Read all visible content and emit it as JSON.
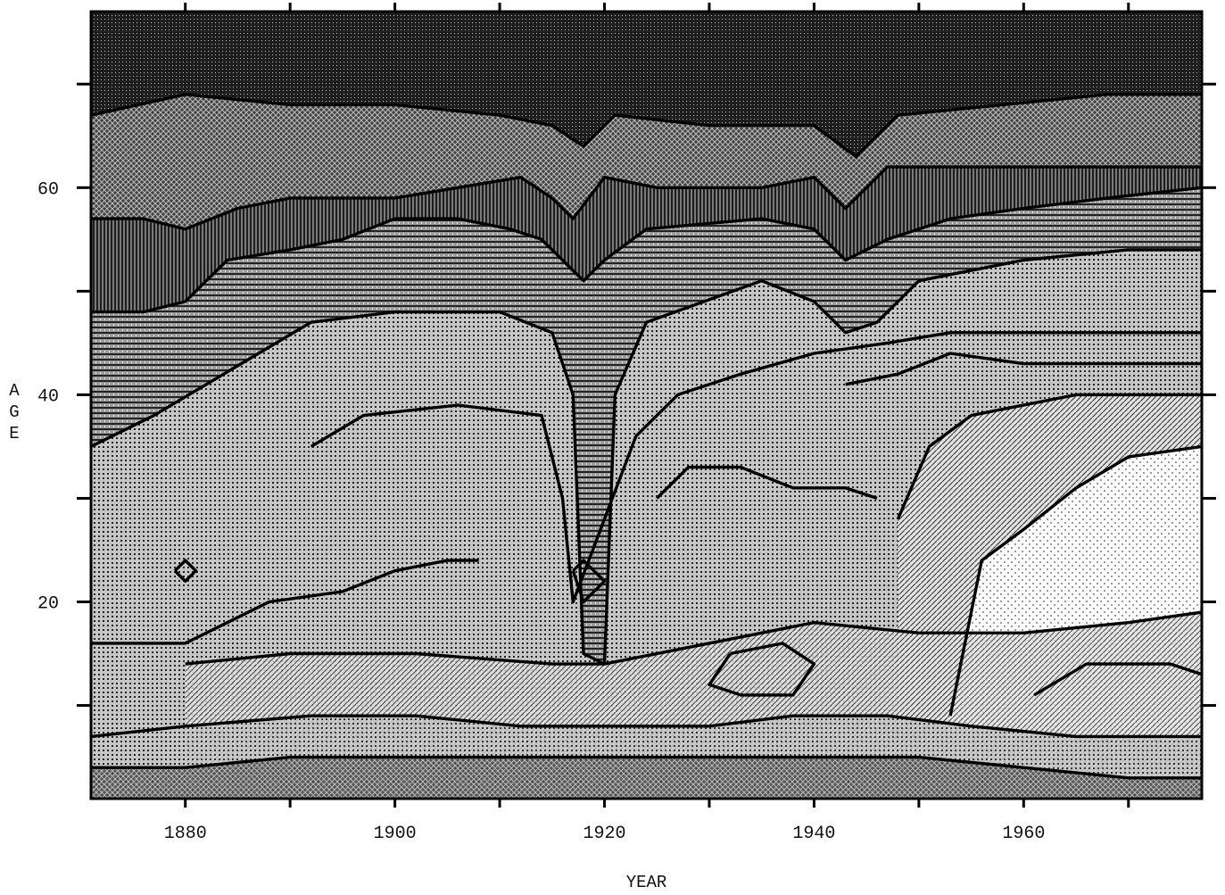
{
  "chart_data": {
    "type": "heatmap",
    "title": "",
    "xlabel": "YEAR",
    "ylabel": "AGE",
    "xlim": [
      1871,
      1977
    ],
    "ylim": [
      1,
      77
    ],
    "x_ticks": [
      1880,
      1890,
      1900,
      1910,
      1920,
      1930,
      1940,
      1950,
      1960,
      1970
    ],
    "x_tick_labels": [
      "1880",
      "",
      "1900",
      "",
      "1920",
      "",
      "1940",
      "",
      "1960",
      ""
    ],
    "y_ticks": [
      10,
      20,
      30,
      40,
      50,
      60,
      70
    ],
    "y_tick_labels": [
      "",
      "20",
      "",
      "40",
      "",
      "60",
      ""
    ],
    "grid": false,
    "legend": "none",
    "colors": {
      "contour_line": "#000000",
      "level_fills": [
        "#f2f2f2",
        "#d6d6d6",
        "#b5b5b5",
        "#8f8f8f",
        "#6b6b6b",
        "#4a4a4a",
        "#2e2e2e"
      ]
    },
    "contours": [
      {
        "level": 1,
        "points": [
          [
            1871,
            57
          ],
          [
            1876,
            57
          ],
          [
            1880,
            56
          ],
          [
            1885,
            58
          ],
          [
            1890,
            59
          ],
          [
            1900,
            59
          ],
          [
            1912,
            61
          ],
          [
            1915,
            59
          ],
          [
            1917,
            57
          ],
          [
            1920,
            61
          ],
          [
            1925,
            60
          ],
          [
            1935,
            60
          ],
          [
            1940,
            61
          ],
          [
            1943,
            58
          ],
          [
            1947,
            62
          ],
          [
            1955,
            62
          ],
          [
            1965,
            62
          ],
          [
            1977,
            62
          ]
        ]
      },
      {
        "level": 2,
        "points": [
          [
            1871,
            48
          ],
          [
            1876,
            48
          ],
          [
            1880,
            49
          ],
          [
            1884,
            53
          ],
          [
            1890,
            54
          ],
          [
            1895,
            55
          ],
          [
            1900,
            57
          ],
          [
            1906,
            57
          ],
          [
            1911,
            56
          ],
          [
            1914,
            55
          ],
          [
            1916,
            53
          ],
          [
            1918,
            51
          ],
          [
            1920,
            53
          ],
          [
            1924,
            56
          ],
          [
            1935,
            57
          ],
          [
            1940,
            56
          ],
          [
            1943,
            53
          ],
          [
            1947,
            55
          ],
          [
            1953,
            57
          ],
          [
            1960,
            58
          ],
          [
            1968,
            59
          ],
          [
            1977,
            60
          ]
        ]
      },
      {
        "level": 3,
        "points": [
          [
            1871,
            35
          ],
          [
            1877,
            38
          ],
          [
            1882,
            41
          ],
          [
            1887,
            44
          ],
          [
            1892,
            47
          ],
          [
            1900,
            48
          ],
          [
            1910,
            48
          ],
          [
            1915,
            46
          ],
          [
            1917,
            40
          ],
          [
            1918,
            15
          ],
          [
            1920,
            14
          ],
          [
            1921,
            40
          ],
          [
            1924,
            47
          ],
          [
            1935,
            51
          ],
          [
            1940,
            49
          ],
          [
            1943,
            46
          ],
          [
            1946,
            47
          ],
          [
            1950,
            51
          ],
          [
            1960,
            53
          ],
          [
            1970,
            54
          ],
          [
            1977,
            54
          ]
        ]
      },
      {
        "level": 4,
        "points": [
          [
            1892,
            35
          ],
          [
            1897,
            38
          ],
          [
            1906,
            39
          ],
          [
            1914,
            38
          ],
          [
            1916,
            30
          ],
          [
            1917,
            20
          ],
          [
            1920,
            28
          ],
          [
            1923,
            36
          ],
          [
            1927,
            40
          ],
          [
            1933,
            42
          ],
          [
            1940,
            44
          ],
          [
            1947,
            45
          ],
          [
            1953,
            46
          ],
          [
            1960,
            46
          ],
          [
            1970,
            46
          ],
          [
            1977,
            46
          ]
        ]
      },
      {
        "level": 5,
        "points": [
          [
            1871,
            16
          ],
          [
            1880,
            16
          ],
          [
            1888,
            20
          ],
          [
            1895,
            21
          ],
          [
            1900,
            23
          ],
          [
            1905,
            24
          ],
          [
            1908,
            24
          ]
        ]
      },
      {
        "level": 5,
        "points": [
          [
            1943,
            41
          ],
          [
            1948,
            42
          ],
          [
            1953,
            44
          ],
          [
            1960,
            43
          ],
          [
            1970,
            43
          ],
          [
            1977,
            43
          ]
        ]
      },
      {
        "level": 6,
        "points": [
          [
            1948,
            28
          ],
          [
            1951,
            35
          ],
          [
            1955,
            38
          ],
          [
            1960,
            39
          ],
          [
            1965,
            40
          ],
          [
            1970,
            40
          ],
          [
            1977,
            40
          ]
        ]
      },
      {
        "level": 6,
        "points": [
          [
            1925,
            30
          ],
          [
            1928,
            33
          ],
          [
            1933,
            33
          ],
          [
            1938,
            31
          ],
          [
            1943,
            31
          ],
          [
            1946,
            30
          ]
        ]
      },
      {
        "level": 7,
        "points": [
          [
            1953,
            9
          ],
          [
            1956,
            24
          ],
          [
            1960,
            27
          ],
          [
            1965,
            31
          ],
          [
            1970,
            34
          ],
          [
            1977,
            35
          ]
        ]
      },
      {
        "level": 8,
        "points": [
          [
            1880,
            14
          ],
          [
            1890,
            15
          ],
          [
            1902,
            15
          ],
          [
            1915,
            14
          ],
          [
            1920,
            14
          ],
          [
            1930,
            16
          ],
          [
            1940,
            18
          ],
          [
            1950,
            17
          ],
          [
            1960,
            17
          ],
          [
            1970,
            18
          ],
          [
            1977,
            19
          ]
        ]
      },
      {
        "level": 9,
        "points": [
          [
            1871,
            7
          ],
          [
            1880,
            8
          ],
          [
            1892,
            9
          ],
          [
            1902,
            9
          ],
          [
            1912,
            8
          ],
          [
            1920,
            8
          ],
          [
            1930,
            8
          ],
          [
            1938,
            9
          ],
          [
            1947,
            9
          ],
          [
            1955,
            8
          ],
          [
            1965,
            7
          ],
          [
            1977,
            7
          ]
        ]
      },
      {
        "level": 10,
        "points": [
          [
            1871,
            4
          ],
          [
            1880,
            4
          ],
          [
            1890,
            5
          ],
          [
            1900,
            5
          ],
          [
            1910,
            5
          ],
          [
            1920,
            5
          ],
          [
            1930,
            5
          ],
          [
            1940,
            5
          ],
          [
            1950,
            5
          ],
          [
            1960,
            4
          ],
          [
            1970,
            3
          ],
          [
            1977,
            3
          ]
        ]
      },
      {
        "level": 11,
        "points": [
          [
            1871,
            67
          ],
          [
            1880,
            69
          ],
          [
            1890,
            68
          ],
          [
            1900,
            68
          ],
          [
            1910,
            67
          ],
          [
            1915,
            66
          ],
          [
            1918,
            64
          ],
          [
            1921,
            67
          ],
          [
            1930,
            66
          ],
          [
            1940,
            66
          ],
          [
            1944,
            63
          ],
          [
            1948,
            67
          ],
          [
            1958,
            68
          ],
          [
            1968,
            69
          ],
          [
            1977,
            69
          ]
        ]
      },
      {
        "level": 12,
        "points": [
          [
            1917,
            23
          ],
          [
            1918,
            20
          ],
          [
            1920,
            22
          ],
          [
            1918,
            24
          ],
          [
            1917,
            23
          ]
        ]
      },
      {
        "level": 12,
        "points": [
          [
            1879,
            23
          ],
          [
            1880,
            22
          ],
          [
            1881,
            23
          ],
          [
            1880,
            24
          ],
          [
            1879,
            23
          ]
        ]
      },
      {
        "level": 12,
        "points": [
          [
            1932,
            15
          ],
          [
            1937,
            16
          ],
          [
            1940,
            14
          ],
          [
            1938,
            11
          ],
          [
            1933,
            11
          ],
          [
            1930,
            12
          ],
          [
            1932,
            15
          ]
        ]
      },
      {
        "level": 12,
        "points": [
          [
            1961,
            11
          ],
          [
            1966,
            14
          ],
          [
            1974,
            14
          ],
          [
            1977,
            13
          ]
        ]
      }
    ]
  }
}
